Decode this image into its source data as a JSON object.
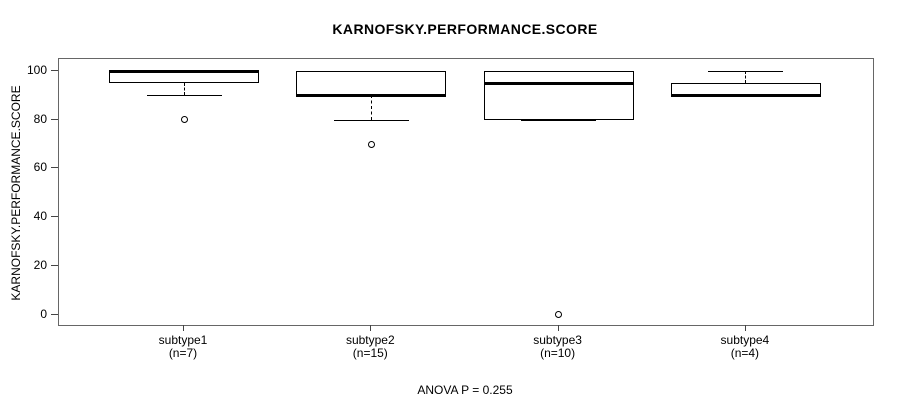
{
  "chart_data": {
    "type": "boxplot",
    "title": "KARNOFSKY.PERFORMANCE.SCORE",
    "ylabel": "KARNOFSKY.PERFORMANCE.SCORE",
    "annotation": "ANOVA P = 0.255",
    "ylim": [
      0,
      100
    ],
    "yticks": [
      0,
      20,
      40,
      60,
      80,
      100
    ],
    "grid": false,
    "legend": null,
    "categories": [
      "subtype1",
      "subtype2",
      "subtype3",
      "subtype4"
    ],
    "series": [
      {
        "name": "subtype1",
        "sublabel": "(n=7)",
        "n": 7,
        "whisker_low": 90,
        "q1": 95,
        "median": 100,
        "q3": 100,
        "whisker_high": 100,
        "outliers": [
          80
        ]
      },
      {
        "name": "subtype2",
        "sublabel": "(n=15)",
        "n": 15,
        "whisker_low": 80,
        "q1": 90,
        "median": 90,
        "q3": 100,
        "whisker_high": 100,
        "outliers": [
          70
        ]
      },
      {
        "name": "subtype3",
        "sublabel": "(n=10)",
        "n": 10,
        "whisker_low": 80,
        "q1": 80,
        "median": 95,
        "q3": 100,
        "whisker_high": 100,
        "outliers": [
          0
        ]
      },
      {
        "name": "subtype4",
        "sublabel": "(n=4)",
        "n": 4,
        "whisker_low": 90,
        "q1": 90,
        "median": 90,
        "q3": 95,
        "whisker_high": 100,
        "outliers": []
      }
    ],
    "colors": {
      "foreground": "#000000",
      "background": "#ffffff"
    }
  }
}
